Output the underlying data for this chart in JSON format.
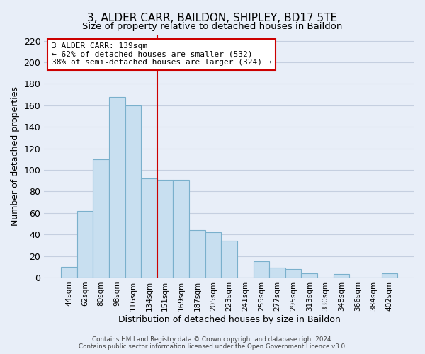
{
  "title": "3, ALDER CARR, BAILDON, SHIPLEY, BD17 5TE",
  "subtitle": "Size of property relative to detached houses in Baildon",
  "xlabel": "Distribution of detached houses by size in Baildon",
  "ylabel": "Number of detached properties",
  "bar_labels": [
    "44sqm",
    "62sqm",
    "80sqm",
    "98sqm",
    "116sqm",
    "134sqm",
    "151sqm",
    "169sqm",
    "187sqm",
    "205sqm",
    "223sqm",
    "241sqm",
    "259sqm",
    "277sqm",
    "295sqm",
    "313sqm",
    "330sqm",
    "348sqm",
    "366sqm",
    "384sqm",
    "402sqm"
  ],
  "bar_values": [
    10,
    62,
    110,
    168,
    160,
    92,
    91,
    91,
    44,
    42,
    34,
    0,
    15,
    9,
    8,
    4,
    0,
    3,
    0,
    0,
    4
  ],
  "bar_color": "#c8dff0",
  "bar_edge_color": "#7ab0cc",
  "vline_x": 6.0,
  "vline_color": "#cc0000",
  "ylim": [
    0,
    225
  ],
  "yticks": [
    0,
    20,
    40,
    60,
    80,
    100,
    120,
    140,
    160,
    180,
    200,
    220
  ],
  "annotation_title": "3 ALDER CARR: 139sqm",
  "annotation_line1": "← 62% of detached houses are smaller (532)",
  "annotation_line2": "38% of semi-detached houses are larger (324) →",
  "footer1": "Contains HM Land Registry data © Crown copyright and database right 2024.",
  "footer2": "Contains public sector information licensed under the Open Government Licence v3.0.",
  "bg_color": "#e8eef8",
  "plot_bg_color": "#e8eef8",
  "grid_color": "#c5cfe0",
  "title_fontsize": 11,
  "subtitle_fontsize": 9.5
}
